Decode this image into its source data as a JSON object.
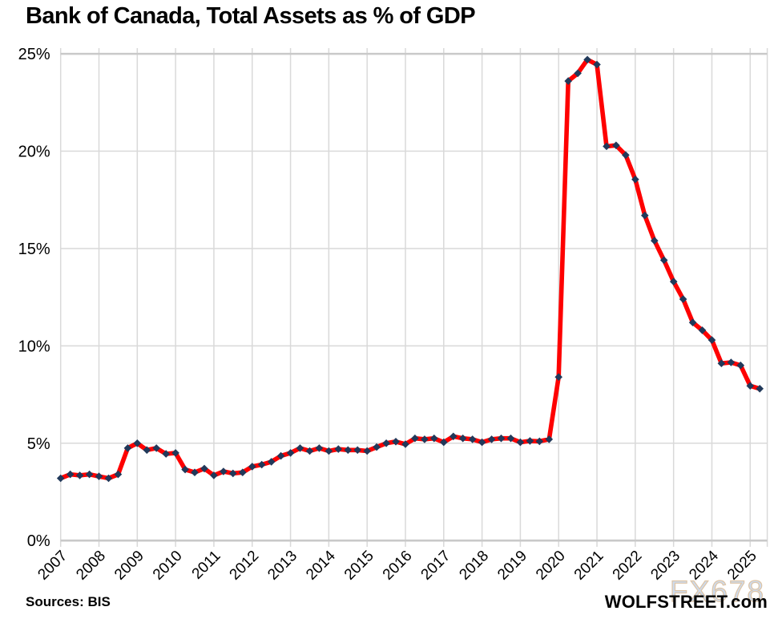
{
  "chart_data": {
    "type": "line",
    "title": "Bank of Canada, Total Assets as % of GDP",
    "xlabel": "",
    "ylabel": "",
    "frequency": "quarterly",
    "x_start": "2007Q1",
    "x_end": "2025Q2",
    "points_per_year": 4,
    "x_tick_labels": [
      "2007",
      "2008",
      "2009",
      "2010",
      "2011",
      "2012",
      "2013",
      "2014",
      "2015",
      "2016",
      "2017",
      "2018",
      "2019",
      "2020",
      "2021",
      "2022",
      "2023",
      "2024",
      "2025"
    ],
    "y_tick_labels": [
      "0%",
      "5%",
      "10%",
      "15%",
      "20%",
      "25%"
    ],
    "ylim": [
      0,
      25
    ],
    "y_tick_step": 5,
    "grid": true,
    "legend": "none",
    "series": [
      {
        "name": "Bank of Canada total assets as % of GDP",
        "color": "#fe0000",
        "marker": "diamond",
        "marker_color": "#21395a",
        "values": [
          3.2,
          3.4,
          3.35,
          3.4,
          3.3,
          3.2,
          3.4,
          4.75,
          5.0,
          4.65,
          4.75,
          4.45,
          4.5,
          3.65,
          3.5,
          3.7,
          3.35,
          3.55,
          3.45,
          3.5,
          3.8,
          3.9,
          4.05,
          4.35,
          4.5,
          4.75,
          4.6,
          4.75,
          4.6,
          4.7,
          4.65,
          4.65,
          4.6,
          4.8,
          5.0,
          5.08,
          4.95,
          5.25,
          5.2,
          5.25,
          5.05,
          5.35,
          5.25,
          5.2,
          5.05,
          5.2,
          5.25,
          5.25,
          5.05,
          5.12,
          5.1,
          5.2,
          8.4,
          23.6,
          24.0,
          24.7,
          24.45,
          20.25,
          20.3,
          19.8,
          18.55,
          16.7,
          15.4,
          14.4,
          13.3,
          12.4,
          11.2,
          10.8,
          10.3,
          9.1,
          9.15,
          9.0,
          7.95,
          7.8
        ]
      }
    ],
    "colors": {
      "gridline": "#d9d9d9",
      "axis_line": "#c9c9c9",
      "text": "#000000"
    }
  },
  "footer": {
    "sources": "Sources: BIS",
    "branding": "WOLFSTREET.com"
  },
  "watermark": {
    "text": "FX678",
    "fill": "#cddbee",
    "outline": "#ddc4a6"
  }
}
